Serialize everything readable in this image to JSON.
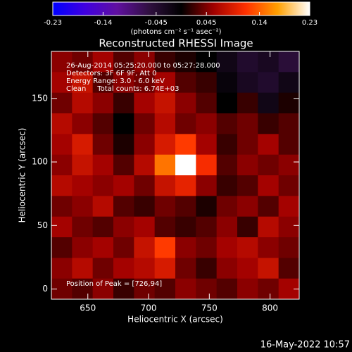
{
  "chart_data": {
    "type": "heatmap",
    "title": "Reconstructed RHESSI Image",
    "colorbar_label": "(photons cm⁻² s⁻¹ asec⁻²)",
    "clim": [
      -0.23,
      0.23
    ],
    "cticks": [
      -0.23,
      -0.14,
      -0.045,
      0.045,
      0.14,
      0.23
    ],
    "colormap": [
      "#0000ff",
      "#4000e0",
      "#6010a0",
      "#301040",
      "#000000",
      "#a00000",
      "#ff3000",
      "#ffa000",
      "#ffffff"
    ],
    "xlabel": "Heliocentric X (arcsec)",
    "ylabel": "Heliocentric Y (arcsec)",
    "xlim": [
      620,
      824
    ],
    "ylim": [
      -8,
      187
    ],
    "xticks": [
      650,
      700,
      750,
      800
    ],
    "yticks": [
      0,
      50,
      100,
      150
    ],
    "annotations": [
      "26-Aug-2014 05:25:20.000 to 05:27:28.000",
      "Detectors: 3F 6F 9F, Att 0",
      "Energy Range: 3.0 - 6.0 keV",
      "Clean     Total counts: 6.74E+03"
    ],
    "peak_label": "Position of Peak = [726,94]",
    "timestamp": "16-May-2022 10:57",
    "z": [
      [
        0.05,
        0.04,
        0.06,
        0.03,
        0.05,
        0.02,
        0.01,
        0.0,
        -0.02,
        -0.04,
        -0.03,
        -0.05
      ],
      [
        0.06,
        0.08,
        0.03,
        0.05,
        0.04,
        0.06,
        0.03,
        0.02,
        -0.01,
        -0.03,
        -0.04,
        -0.02
      ],
      [
        0.04,
        0.07,
        0.05,
        0.02,
        0.06,
        0.08,
        0.05,
        0.03,
        0.0,
        0.02,
        -0.02,
        0.01
      ],
      [
        0.07,
        0.05,
        0.03,
        0.0,
        0.04,
        0.07,
        0.04,
        0.05,
        0.03,
        0.04,
        0.02,
        0.03
      ],
      [
        0.06,
        0.09,
        0.04,
        0.01,
        0.05,
        0.09,
        0.12,
        0.06,
        0.02,
        0.04,
        0.06,
        0.03
      ],
      [
        0.05,
        0.08,
        0.06,
        0.03,
        0.07,
        0.15,
        0.23,
        0.11,
        0.03,
        0.05,
        0.04,
        0.05
      ],
      [
        0.07,
        0.06,
        0.05,
        0.06,
        0.04,
        0.08,
        0.1,
        0.05,
        0.02,
        0.03,
        0.06,
        0.04
      ],
      [
        0.04,
        0.05,
        0.07,
        0.03,
        0.02,
        0.04,
        0.03,
        0.01,
        0.04,
        0.05,
        0.03,
        0.06
      ],
      [
        0.06,
        0.04,
        0.03,
        0.05,
        0.06,
        0.03,
        0.02,
        0.03,
        0.05,
        0.02,
        0.07,
        0.05
      ],
      [
        0.03,
        0.05,
        0.06,
        0.04,
        0.08,
        0.12,
        0.05,
        0.04,
        0.06,
        0.07,
        0.05,
        0.04
      ],
      [
        0.05,
        0.07,
        0.04,
        0.06,
        0.07,
        0.09,
        0.04,
        0.02,
        0.05,
        0.06,
        0.08,
        0.03
      ],
      [
        0.04,
        0.03,
        0.05,
        0.02,
        0.04,
        0.03,
        0.05,
        0.04,
        0.03,
        0.05,
        0.04,
        0.06
      ]
    ]
  }
}
